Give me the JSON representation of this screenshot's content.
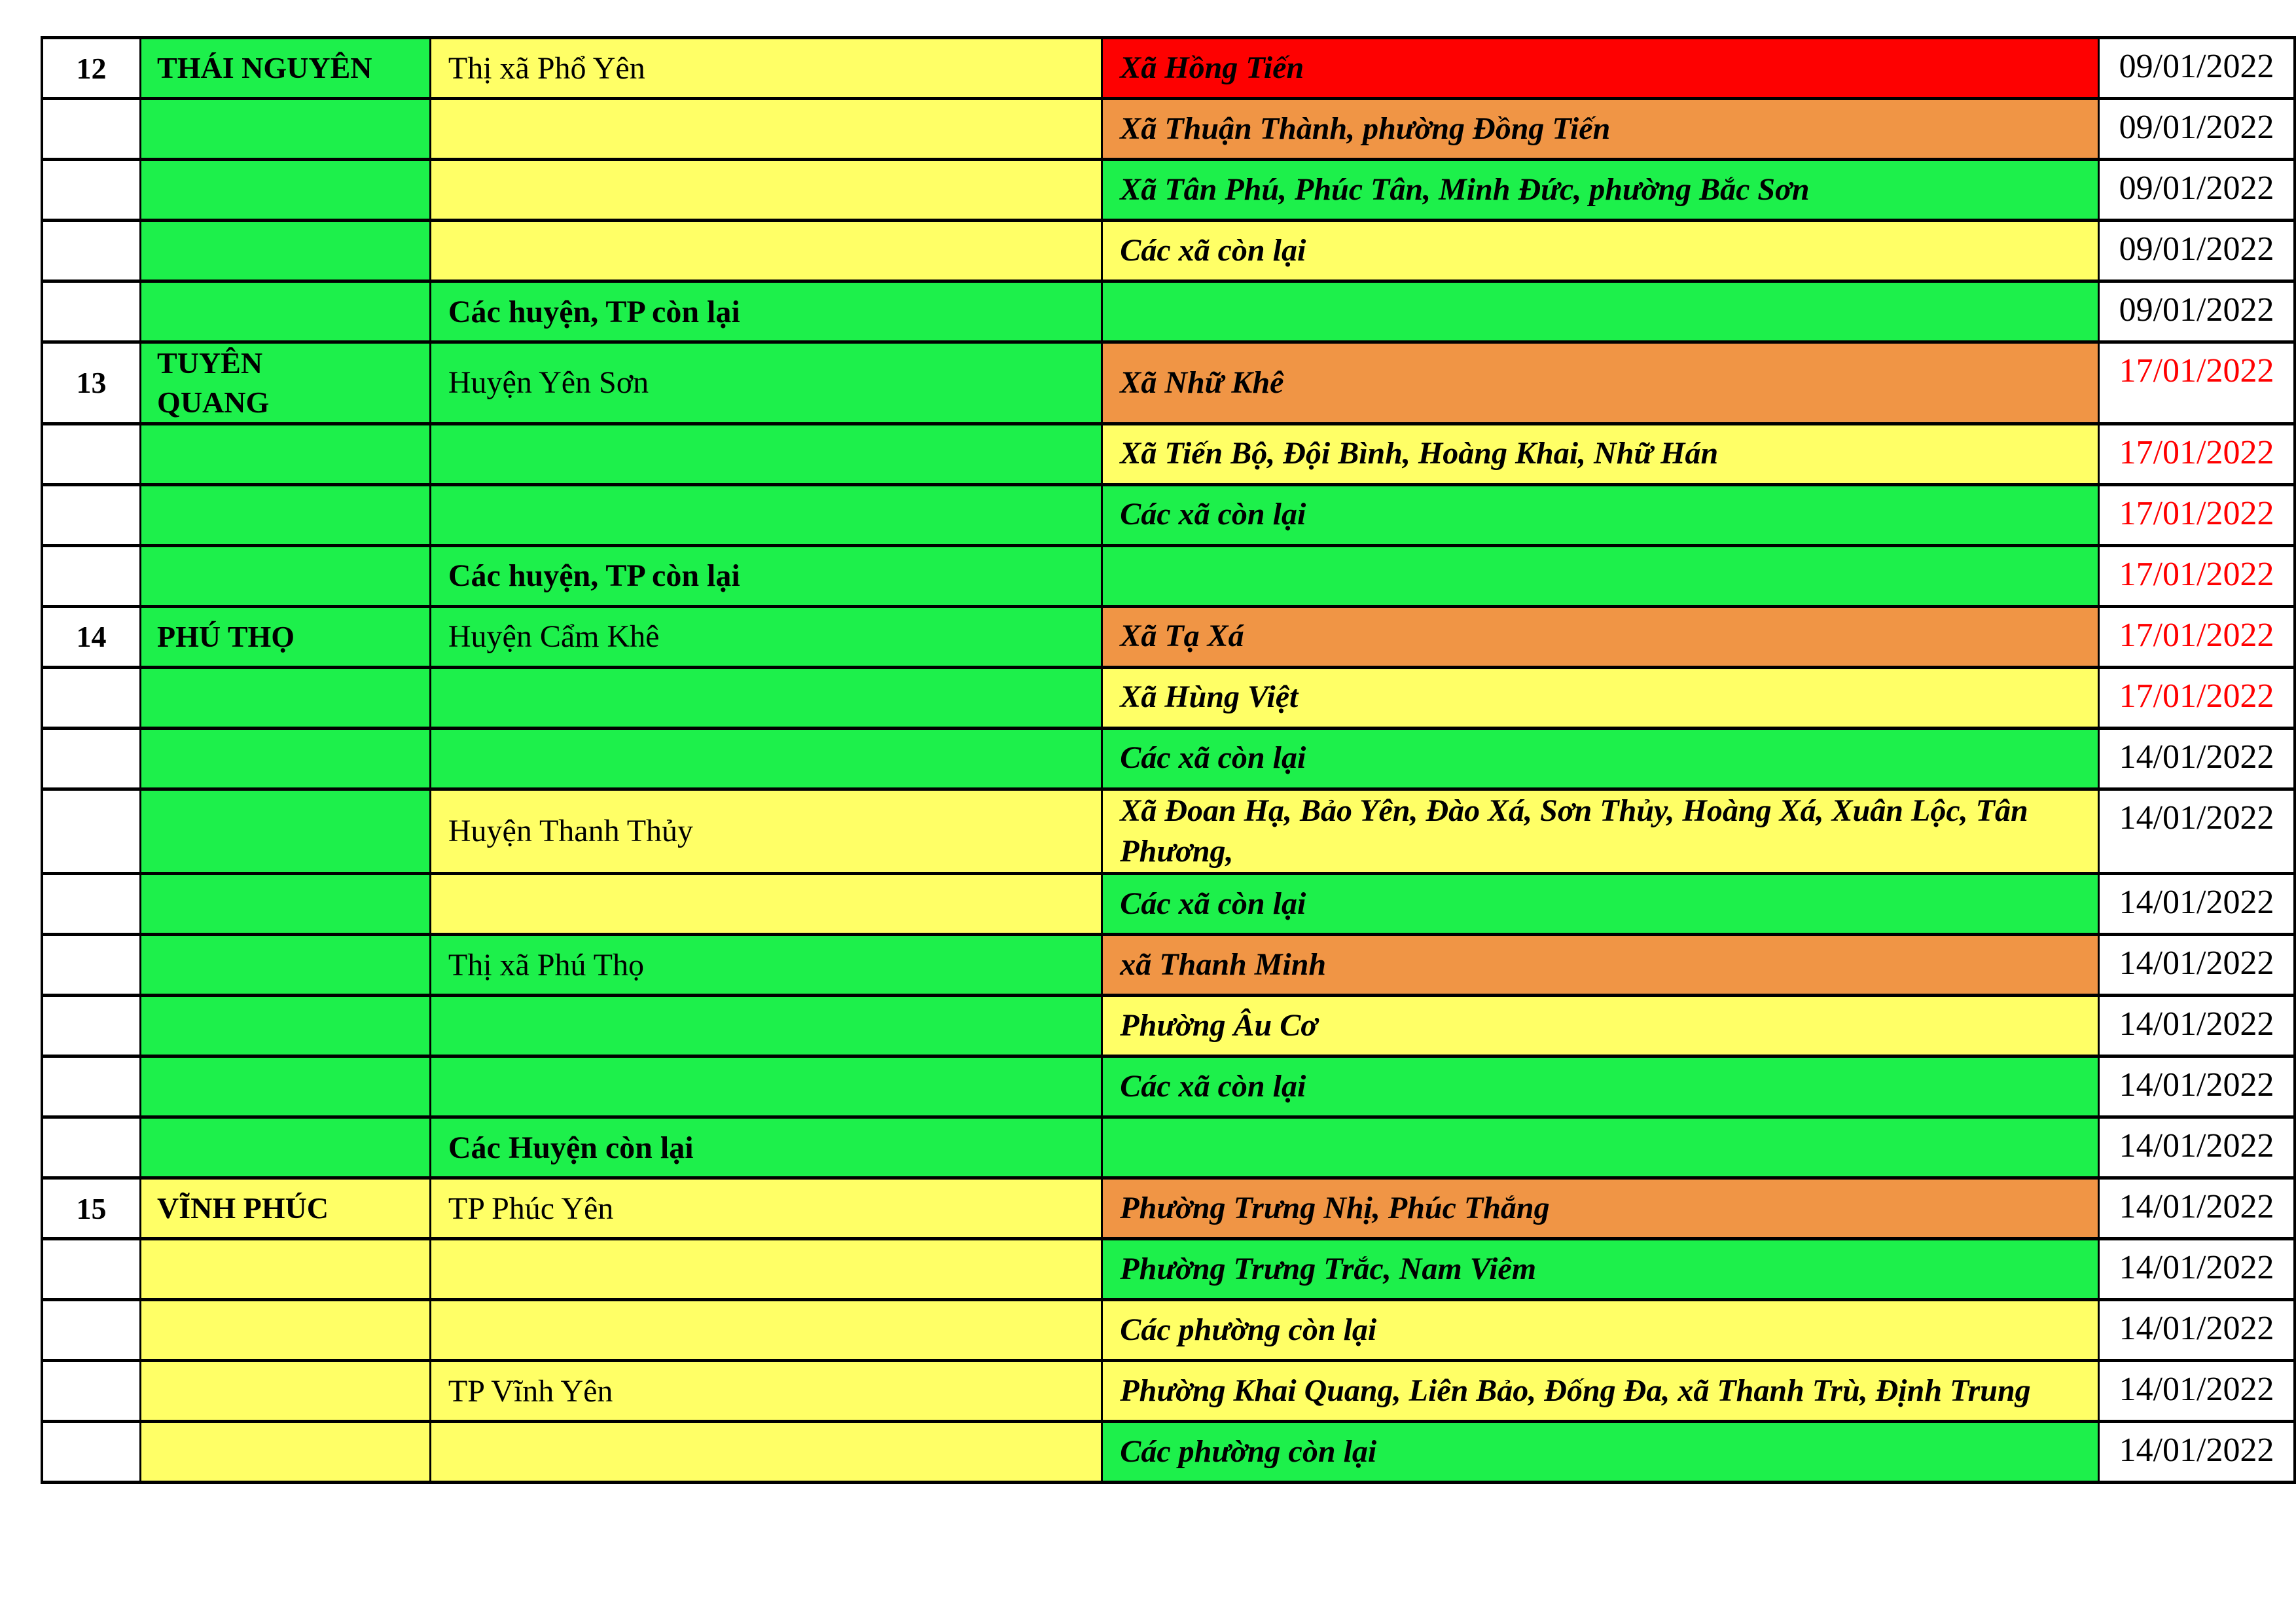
{
  "table": {
    "description": "Province COVID risk-level table rows 12-15",
    "palette": {
      "white": "#FFFFFF",
      "green": "#1DF04B",
      "yellow": "#FFFF66",
      "orange": "#F09545",
      "red": "#FE0101",
      "date_red": "#FF0000",
      "border": "#000000",
      "text": "#000000"
    },
    "columns": [
      "no",
      "province",
      "district",
      "communes",
      "date"
    ],
    "rows": [
      {
        "no": "12",
        "province": "THÁI NGUYÊN",
        "district": "Thị xã Phổ Yên",
        "district_bold": false,
        "communes": "Xã Hồng Tiến",
        "date": "09/01/2022",
        "province_bg": "green",
        "district_bg": "yellow",
        "communes_bg": "red",
        "date_red": false
      },
      {
        "no": "",
        "province": "",
        "district": "",
        "district_bold": false,
        "communes": "Xã Thuận Thành, phường Đồng Tiến",
        "date": "09/01/2022",
        "province_bg": "green",
        "district_bg": "yellow",
        "communes_bg": "orange",
        "date_red": false
      },
      {
        "no": "",
        "province": "",
        "district": "",
        "district_bold": false,
        "communes": "Xã Tân Phú, Phúc Tân, Minh Đức, phường Bắc Sơn",
        "date": "09/01/2022",
        "province_bg": "green",
        "district_bg": "yellow",
        "communes_bg": "green",
        "date_red": false
      },
      {
        "no": "",
        "province": "",
        "district": "",
        "district_bold": false,
        "communes": "Các xã còn lại",
        "date": "09/01/2022",
        "province_bg": "green",
        "district_bg": "yellow",
        "communes_bg": "yellow",
        "date_red": false
      },
      {
        "no": "",
        "province": "",
        "district": "Các huyện, TP còn lại",
        "district_bold": true,
        "communes": "",
        "date": "09/01/2022",
        "province_bg": "green",
        "district_bg": "green",
        "communes_bg": "green",
        "date_red": false
      },
      {
        "no": "13",
        "province": "TUYÊN\nQUANG",
        "district": "Huyện Yên Sơn",
        "district_bold": false,
        "communes": "Xã Nhữ Khê",
        "date": "17/01/2022",
        "province_bg": "green",
        "district_bg": "green",
        "communes_bg": "orange",
        "date_red": true
      },
      {
        "no": "",
        "province": "",
        "district": "",
        "district_bold": false,
        "communes": "Xã Tiến Bộ, Đội Bình, Hoàng Khai, Nhữ Hán",
        "date": "17/01/2022",
        "province_bg": "green",
        "district_bg": "green",
        "communes_bg": "yellow",
        "date_red": true
      },
      {
        "no": "",
        "province": "",
        "district": "",
        "district_bold": false,
        "communes": "Các xã còn lại",
        "date": "17/01/2022",
        "province_bg": "green",
        "district_bg": "green",
        "communes_bg": "green",
        "date_red": true
      },
      {
        "no": "",
        "province": "",
        "district": "Các huyện, TP còn lại",
        "district_bold": true,
        "communes": "",
        "date": "17/01/2022",
        "province_bg": "green",
        "district_bg": "green",
        "communes_bg": "green",
        "date_red": true
      },
      {
        "no": "14",
        "province": "PHÚ THỌ",
        "district": "Huyện Cẩm Khê",
        "district_bold": false,
        "communes": "Xã Tạ Xá",
        "date": "17/01/2022",
        "province_bg": "green",
        "district_bg": "green",
        "communes_bg": "orange",
        "date_red": true
      },
      {
        "no": "",
        "province": "",
        "district": "",
        "district_bold": false,
        "communes": "Xã Hùng Việt",
        "date": "17/01/2022",
        "province_bg": "green",
        "district_bg": "green",
        "communes_bg": "yellow",
        "date_red": true
      },
      {
        "no": "",
        "province": "",
        "district": "",
        "district_bold": false,
        "communes": "Các xã còn lại",
        "date": "14/01/2022",
        "province_bg": "green",
        "district_bg": "green",
        "communes_bg": "green",
        "date_red": false
      },
      {
        "no": "",
        "province": "",
        "district": "Huyện Thanh Thủy",
        "district_bold": false,
        "communes": "Xã Đoan Hạ, Bảo Yên, Đào Xá, Sơn Thủy, Hoàng Xá, Xuân Lộc, Tân Phương,",
        "date": "14/01/2022",
        "province_bg": "green",
        "district_bg": "yellow",
        "communes_bg": "yellow",
        "date_red": false
      },
      {
        "no": "",
        "province": "",
        "district": "",
        "district_bold": false,
        "communes": "Các xã còn lại",
        "date": "14/01/2022",
        "province_bg": "green",
        "district_bg": "yellow",
        "communes_bg": "green",
        "date_red": false
      },
      {
        "no": "",
        "province": "",
        "district": "Thị xã Phú Thọ",
        "district_bold": false,
        "communes": "xã Thanh Minh",
        "date": "14/01/2022",
        "province_bg": "green",
        "district_bg": "green",
        "communes_bg": "orange",
        "date_red": false
      },
      {
        "no": "",
        "province": "",
        "district": "",
        "district_bold": false,
        "communes": "Phường Âu Cơ",
        "date": "14/01/2022",
        "province_bg": "green",
        "district_bg": "green",
        "communes_bg": "yellow",
        "date_red": false
      },
      {
        "no": "",
        "province": "",
        "district": "",
        "district_bold": false,
        "communes": "Các xã còn lại",
        "date": "14/01/2022",
        "province_bg": "green",
        "district_bg": "green",
        "communes_bg": "green",
        "date_red": false
      },
      {
        "no": "",
        "province": "",
        "district": "Các Huyện còn lại",
        "district_bold": true,
        "communes": "",
        "date": "14/01/2022",
        "province_bg": "green",
        "district_bg": "green",
        "communes_bg": "green",
        "date_red": false
      },
      {
        "no": "15",
        "province": "VĨNH PHÚC",
        "district": "TP Phúc Yên",
        "district_bold": false,
        "communes": "Phường Trưng Nhị, Phúc Thắng",
        "date": "14/01/2022",
        "province_bg": "yellow",
        "district_bg": "yellow",
        "communes_bg": "orange",
        "date_red": false
      },
      {
        "no": "",
        "province": "",
        "district": "",
        "district_bold": false,
        "communes": "Phường Trưng Trắc, Nam Viêm",
        "date": "14/01/2022",
        "province_bg": "yellow",
        "district_bg": "yellow",
        "communes_bg": "green",
        "date_red": false
      },
      {
        "no": "",
        "province": "",
        "district": "",
        "district_bold": false,
        "communes": "Các phường còn lại",
        "date": "14/01/2022",
        "province_bg": "yellow",
        "district_bg": "yellow",
        "communes_bg": "yellow",
        "date_red": false
      },
      {
        "no": "",
        "province": "",
        "district": "TP Vĩnh Yên",
        "district_bold": false,
        "communes": "Phường Khai Quang, Liên Bảo, Đống Đa, xã Thanh Trù, Định Trung",
        "date": "14/01/2022",
        "province_bg": "yellow",
        "district_bg": "yellow",
        "communes_bg": "yellow",
        "date_red": false
      },
      {
        "no": "",
        "province": "",
        "district": "",
        "district_bold": false,
        "communes": "Các phường còn lại",
        "date": "14/01/2022",
        "province_bg": "yellow",
        "district_bg": "yellow",
        "communes_bg": "green",
        "date_red": false
      }
    ]
  }
}
